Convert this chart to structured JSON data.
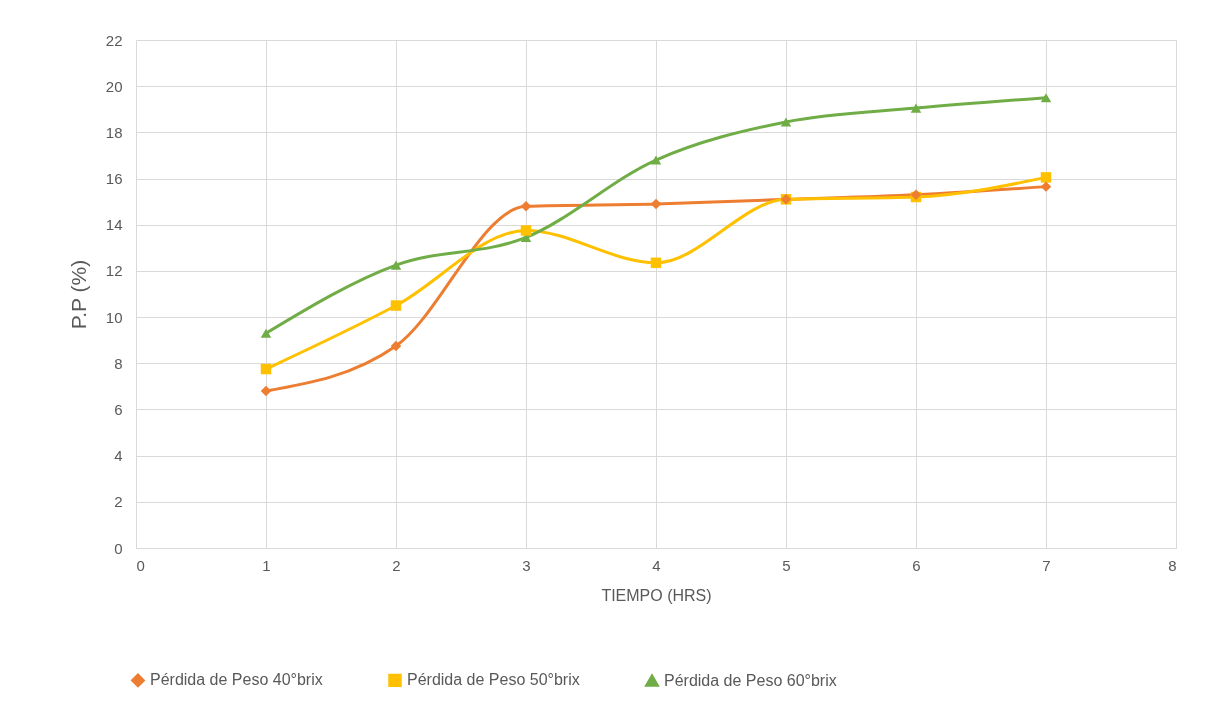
{
  "chart_data": {
    "type": "line",
    "xlabel": "TIEMPO (HRS)",
    "ylabel": "P.P (%)",
    "x": [
      1,
      2,
      3,
      4,
      5,
      6,
      7
    ],
    "series": [
      {
        "name": "Pérdida de Peso 40°brix",
        "color": "#ed7d31",
        "marker": "diamond",
        "values": [
          6.8,
          8.75,
          14.8,
          14.9,
          15.1,
          15.3,
          15.65
        ]
      },
      {
        "name": "Pérdida de Peso 50°brix",
        "color": "#ffc000",
        "marker": "square",
        "values": [
          7.75,
          10.5,
          13.75,
          12.35,
          15.1,
          15.2,
          16.05
        ]
      },
      {
        "name": "Pérdida de Peso 60°brix",
        "color": "#70ad47",
        "marker": "triangle",
        "values": [
          9.3,
          12.25,
          13.45,
          16.8,
          18.45,
          19.05,
          19.5
        ]
      }
    ],
    "xlim": [
      0,
      8
    ],
    "xticks": [
      0,
      1,
      2,
      3,
      4,
      5,
      6,
      7,
      8
    ],
    "ylim": [
      0,
      22
    ],
    "yticks": [
      0,
      2,
      4,
      6,
      8,
      10,
      12,
      14,
      16,
      18,
      20,
      22
    ],
    "grid": true,
    "legend": "bottom",
    "line_style": "solid"
  }
}
